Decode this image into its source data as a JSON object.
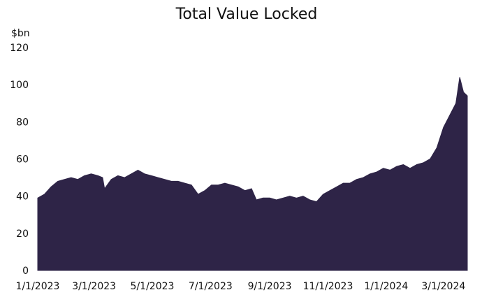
{
  "chart_data": {
    "type": "area",
    "title": "Total Value Locked",
    "ylabel": "$bn",
    "xlabel": "",
    "ylim": [
      0,
      120
    ],
    "yticks": [
      0,
      20,
      40,
      60,
      80,
      100,
      120
    ],
    "xticks": [
      "1/1/2023",
      "3/1/2023",
      "5/1/2023",
      "7/1/2023",
      "9/1/2023",
      "11/1/2023",
      "1/1/2024",
      "3/1/2024"
    ],
    "grid": false,
    "legend": "none",
    "colors": {
      "fill": "#2e2447"
    },
    "series": [
      {
        "x": [
          "1/1/2023",
          "1/8/2023",
          "1/15/2023",
          "1/22/2023",
          "1/29/2023",
          "2/5/2023",
          "2/12/2023",
          "2/19/2023",
          "2/26/2023",
          "3/5/2023",
          "3/10/2023",
          "3/12/2023",
          "3/19/2023",
          "3/26/2023",
          "4/2/2023",
          "4/9/2023",
          "4/16/2023",
          "4/23/2023",
          "4/30/2023",
          "5/7/2023",
          "5/14/2023",
          "5/21/2023",
          "5/28/2023",
          "6/4/2023",
          "6/11/2023",
          "6/18/2023",
          "6/25/2023",
          "7/2/2023",
          "7/9/2023",
          "7/16/2023",
          "7/23/2023",
          "7/30/2023",
          "8/6/2023",
          "8/13/2023",
          "8/18/2023",
          "8/25/2023",
          "9/1/2023",
          "9/8/2023",
          "9/15/2023",
          "9/22/2023",
          "9/29/2023",
          "10/6/2023",
          "10/13/2023",
          "10/20/2023",
          "10/27/2023",
          "11/3/2023",
          "11/10/2023",
          "11/17/2023",
          "11/24/2023",
          "12/1/2023",
          "12/8/2023",
          "12/15/2023",
          "12/22/2023",
          "12/29/2023",
          "1/5/2024",
          "1/12/2024",
          "1/19/2024",
          "1/26/2024",
          "2/2/2024",
          "2/9/2024",
          "2/16/2024",
          "2/23/2024",
          "3/1/2024",
          "3/8/2024",
          "3/14/2024",
          "3/18/2024",
          "3/22/2024",
          "3/26/2024"
        ],
        "values": [
          39,
          41,
          45,
          48,
          49,
          50,
          49,
          51,
          52,
          51,
          50,
          44,
          49,
          51,
          50,
          52,
          54,
          52,
          51,
          50,
          49,
          48,
          48,
          47,
          46,
          41,
          43,
          46,
          46,
          47,
          46,
          45,
          43,
          44,
          38,
          39,
          39,
          38,
          39,
          40,
          39,
          40,
          38,
          37,
          41,
          43,
          45,
          47,
          47,
          49,
          50,
          52,
          53,
          55,
          54,
          56,
          57,
          55,
          57,
          58,
          60,
          66,
          77,
          84,
          90,
          104,
          96,
          94
        ]
      }
    ]
  }
}
